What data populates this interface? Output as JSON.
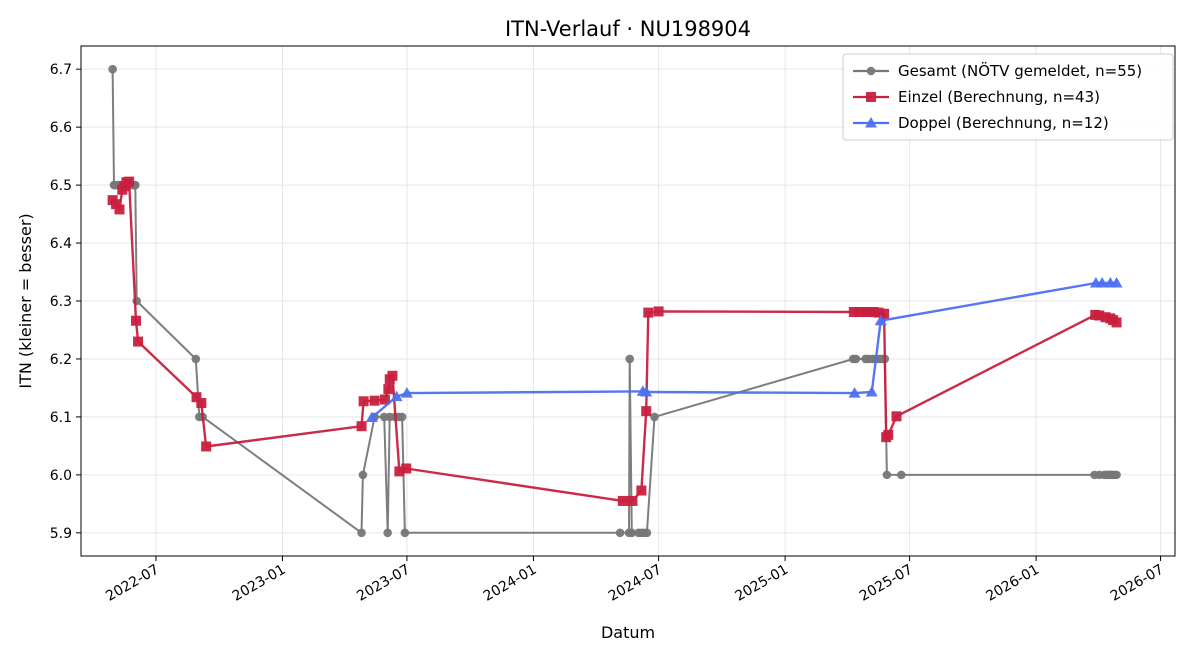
{
  "chart_data": {
    "type": "line",
    "title": "ITN-Verlauf · NU198904",
    "xlabel": "Datum",
    "ylabel": "ITN  (kleiner = besser)",
    "x_axis_type": "date",
    "xlim": [
      "2022-03-14",
      "2026-07-22"
    ],
    "ylim": [
      5.86,
      6.74
    ],
    "y_ticks": [
      5.9,
      6.0,
      6.1,
      6.2,
      6.3,
      6.4,
      6.5,
      6.6,
      6.7
    ],
    "x_ticks": [
      "2022-07",
      "2023-01",
      "2023-07",
      "2024-01",
      "2024-07",
      "2025-01",
      "2025-07",
      "2026-01",
      "2026-07"
    ],
    "x_ticks_rotated": true,
    "grid": true,
    "legend_position": "top-right",
    "series": [
      {
        "name": "Gesamt (NÖTV gemeldet, n=55)",
        "color": "#777777",
        "marker": "circle",
        "points": [
          [
            "2022-04-29",
            6.7
          ],
          [
            "2022-05-01",
            6.5
          ],
          [
            "2022-05-03",
            6.5
          ],
          [
            "2022-05-06",
            6.5
          ],
          [
            "2022-05-10",
            6.5
          ],
          [
            "2022-05-14",
            6.5
          ],
          [
            "2022-05-18",
            6.5
          ],
          [
            "2022-05-22",
            6.5
          ],
          [
            "2022-05-26",
            6.5
          ],
          [
            "2022-05-30",
            6.5
          ],
          [
            "2022-06-01",
            6.5
          ],
          [
            "2022-06-03",
            6.3
          ],
          [
            "2022-08-28",
            6.2
          ],
          [
            "2022-09-02",
            6.1
          ],
          [
            "2022-09-07",
            6.1
          ],
          [
            "2023-04-26",
            5.9
          ],
          [
            "2023-04-28",
            6.0
          ],
          [
            "2023-05-15",
            6.1
          ],
          [
            "2023-05-29",
            6.1
          ],
          [
            "2023-06-03",
            5.9
          ],
          [
            "2023-06-06",
            6.1
          ],
          [
            "2023-06-14",
            6.1
          ],
          [
            "2023-06-19",
            6.1
          ],
          [
            "2023-06-24",
            6.1
          ],
          [
            "2023-06-28",
            5.9
          ],
          [
            "2024-05-06",
            5.9
          ],
          [
            "2024-05-19",
            5.9
          ],
          [
            "2024-05-20",
            6.2
          ],
          [
            "2024-05-23",
            5.9
          ],
          [
            "2024-06-02",
            5.9
          ],
          [
            "2024-06-06",
            5.9
          ],
          [
            "2024-06-10",
            5.9
          ],
          [
            "2024-06-14",
            5.9
          ],
          [
            "2024-06-25",
            6.1
          ],
          [
            "2025-04-10",
            6.2
          ],
          [
            "2025-04-14",
            6.2
          ],
          [
            "2025-04-28",
            6.2
          ],
          [
            "2025-05-02",
            6.2
          ],
          [
            "2025-05-08",
            6.2
          ],
          [
            "2025-05-13",
            6.2
          ],
          [
            "2025-05-18",
            6.2
          ],
          [
            "2025-05-22",
            6.2
          ],
          [
            "2025-05-26",
            6.2
          ],
          [
            "2025-05-29",
            6.0
          ],
          [
            "2025-06-19",
            6.0
          ],
          [
            "2026-03-27",
            6.0
          ],
          [
            "2026-04-03",
            6.0
          ],
          [
            "2026-04-10",
            6.0
          ],
          [
            "2026-04-14",
            6.0
          ],
          [
            "2026-04-16",
            6.0
          ],
          [
            "2026-04-18",
            6.0
          ],
          [
            "2026-04-20",
            6.0
          ],
          [
            "2026-04-22",
            6.0
          ],
          [
            "2026-04-25",
            6.0
          ],
          [
            "2026-04-28",
            6.0
          ]
        ]
      },
      {
        "name": "Einzel (Berechnung, n=43)",
        "color": "#c8203f",
        "marker": "square",
        "points": [
          [
            "2022-04-29",
            6.474
          ],
          [
            "2022-05-04",
            6.467
          ],
          [
            "2022-05-09",
            6.458
          ],
          [
            "2022-05-13",
            6.492
          ],
          [
            "2022-05-16",
            6.498
          ],
          [
            "2022-05-19",
            6.505
          ],
          [
            "2022-05-23",
            6.506
          ],
          [
            "2022-06-02",
            6.266
          ],
          [
            "2022-06-05",
            6.23
          ],
          [
            "2022-08-29",
            6.134
          ],
          [
            "2022-09-05",
            6.124
          ],
          [
            "2022-09-12",
            6.049
          ],
          [
            "2023-04-26",
            6.084
          ],
          [
            "2023-04-29",
            6.127
          ],
          [
            "2023-05-15",
            6.128
          ],
          [
            "2023-05-30",
            6.13
          ],
          [
            "2023-06-04",
            6.148
          ],
          [
            "2023-06-06",
            6.165
          ],
          [
            "2023-06-10",
            6.171
          ],
          [
            "2023-06-20",
            6.006
          ],
          [
            "2023-06-30",
            6.011
          ],
          [
            "2024-05-10",
            5.955
          ],
          [
            "2024-05-24",
            5.955
          ],
          [
            "2024-06-06",
            5.973
          ],
          [
            "2024-06-13",
            6.11
          ],
          [
            "2024-06-16",
            6.28
          ],
          [
            "2024-07-01",
            6.282
          ],
          [
            "2025-04-11",
            6.281
          ],
          [
            "2025-04-19",
            6.281
          ],
          [
            "2025-04-27",
            6.281
          ],
          [
            "2025-05-04",
            6.281
          ],
          [
            "2025-05-10",
            6.281
          ],
          [
            "2025-05-17",
            6.28
          ],
          [
            "2025-05-25",
            6.278
          ],
          [
            "2025-05-28",
            6.065
          ],
          [
            "2025-05-31",
            6.069
          ],
          [
            "2025-06-12",
            6.101
          ],
          [
            "2026-03-28",
            6.276
          ],
          [
            "2026-04-03",
            6.275
          ],
          [
            "2026-04-12",
            6.272
          ],
          [
            "2026-04-19",
            6.27
          ],
          [
            "2026-04-23",
            6.267
          ],
          [
            "2026-04-28",
            6.263
          ]
        ]
      },
      {
        "name": "Doppel (Berechnung, n=12)",
        "color": "#4e6ff0",
        "marker": "triangle",
        "points": [
          [
            "2023-05-11",
            6.099
          ],
          [
            "2023-06-16",
            6.135
          ],
          [
            "2023-07-01",
            6.141
          ],
          [
            "2024-06-08",
            6.144
          ],
          [
            "2024-06-13",
            6.143
          ],
          [
            "2025-04-12",
            6.141
          ],
          [
            "2025-05-07",
            6.143
          ],
          [
            "2025-05-20",
            6.266
          ],
          [
            "2026-03-29",
            6.331
          ],
          [
            "2026-04-07",
            6.331
          ],
          [
            "2026-04-19",
            6.331
          ],
          [
            "2026-04-28",
            6.331
          ]
        ]
      }
    ]
  }
}
